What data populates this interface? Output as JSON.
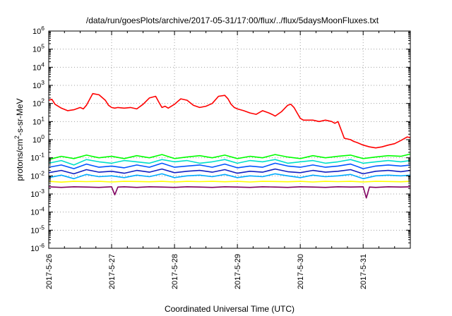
{
  "chart_data": {
    "type": "line",
    "title": "/data/run/goesPlots/archive/2017-05-31/17:00/flux/../flux/5daysMoonFluxes.txt",
    "xlabel": "Coordinated Universal Time (UTC)",
    "ylabel_parts": [
      "protons/cm",
      "2",
      "-s-sr-MeV"
    ],
    "x_tick_labels": [
      "2017-5-26",
      "2017-5-27",
      "2017-5-28",
      "2017-5-29",
      "2017-5-30",
      "2017-5-31"
    ],
    "xlim_days": [
      0,
      5.75
    ],
    "y_scale": "log",
    "ylim": [
      1e-06,
      1000000.0
    ],
    "y_tick_exponents": [
      -6,
      -5,
      -4,
      -3,
      -2,
      -1,
      0,
      1,
      2,
      3,
      4,
      5,
      6
    ],
    "grid": true,
    "series": [
      {
        "color": "#ff0000",
        "x": [
          0.0,
          0.05,
          0.1,
          0.2,
          0.3,
          0.4,
          0.5,
          0.55,
          0.6,
          0.7,
          0.8,
          0.9,
          0.95,
          1.0,
          1.05,
          1.1,
          1.2,
          1.3,
          1.4,
          1.5,
          1.6,
          1.7,
          1.75,
          1.8,
          1.85,
          1.9,
          2.0,
          2.1,
          2.2,
          2.3,
          2.4,
          2.5,
          2.6,
          2.7,
          2.8,
          2.85,
          2.9,
          2.95,
          3.0,
          3.1,
          3.2,
          3.3,
          3.4,
          3.5,
          3.55,
          3.6,
          3.7,
          3.8,
          3.85,
          3.9,
          3.95,
          4.0,
          4.05,
          4.1,
          4.2,
          4.3,
          4.4,
          4.5,
          4.55,
          4.6,
          4.7,
          4.8,
          4.85,
          4.9,
          5.0,
          5.1,
          5.2,
          5.3,
          5.4,
          5.5,
          5.6,
          5.7,
          5.75
        ],
        "values": [
          150,
          170,
          90,
          55,
          40,
          45,
          60,
          50,
          80,
          350,
          300,
          150,
          80,
          60,
          55,
          60,
          55,
          60,
          50,
          90,
          200,
          250,
          120,
          60,
          70,
          55,
          90,
          180,
          150,
          80,
          60,
          70,
          100,
          250,
          280,
          180,
          90,
          60,
          50,
          40,
          30,
          25,
          40,
          30,
          25,
          20,
          35,
          80,
          90,
          60,
          30,
          15,
          12,
          12,
          12,
          10,
          12,
          10,
          8,
          10,
          1.2,
          1.0,
          0.8,
          0.7,
          0.5,
          0.4,
          0.35,
          0.4,
          0.5,
          0.6,
          0.9,
          1.4,
          1.3
        ]
      },
      {
        "color": "#00ff00",
        "x": [
          0.0,
          0.2,
          0.4,
          0.6,
          0.8,
          1.0,
          1.2,
          1.4,
          1.6,
          1.8,
          2.0,
          2.2,
          2.4,
          2.6,
          2.8,
          3.0,
          3.2,
          3.4,
          3.6,
          3.8,
          4.0,
          4.2,
          4.4,
          4.6,
          4.8,
          5.0,
          5.2,
          5.4,
          5.6,
          5.75
        ],
        "values": [
          0.08,
          0.12,
          0.09,
          0.14,
          0.1,
          0.12,
          0.09,
          0.13,
          0.1,
          0.15,
          0.09,
          0.11,
          0.13,
          0.1,
          0.14,
          0.09,
          0.12,
          0.1,
          0.15,
          0.11,
          0.09,
          0.13,
          0.1,
          0.12,
          0.14,
          0.09,
          0.11,
          0.13,
          0.12,
          0.16
        ]
      },
      {
        "color": "#00e0c8",
        "x": [
          0.0,
          0.2,
          0.4,
          0.6,
          0.8,
          1.0,
          1.2,
          1.4,
          1.6,
          1.8,
          2.0,
          2.2,
          2.4,
          2.6,
          2.8,
          3.0,
          3.2,
          3.4,
          3.6,
          3.8,
          4.0,
          4.2,
          4.4,
          4.6,
          4.8,
          5.0,
          5.2,
          5.4,
          5.6,
          5.75
        ],
        "values": [
          0.05,
          0.07,
          0.04,
          0.08,
          0.06,
          0.05,
          0.07,
          0.06,
          0.05,
          0.08,
          0.06,
          0.07,
          0.05,
          0.06,
          0.08,
          0.05,
          0.07,
          0.06,
          0.08,
          0.05,
          0.06,
          0.07,
          0.05,
          0.06,
          0.08,
          0.05,
          0.06,
          0.07,
          0.06,
          0.07
        ]
      },
      {
        "color": "#0055ff",
        "x": [
          0.0,
          0.2,
          0.4,
          0.6,
          0.8,
          1.0,
          1.2,
          1.4,
          1.6,
          1.8,
          2.0,
          2.2,
          2.4,
          2.6,
          2.8,
          3.0,
          3.2,
          3.4,
          3.6,
          3.8,
          4.0,
          4.2,
          4.4,
          4.6,
          4.8,
          5.0,
          5.2,
          5.4,
          5.6,
          5.75
        ],
        "values": [
          0.03,
          0.04,
          0.025,
          0.045,
          0.03,
          0.035,
          0.028,
          0.04,
          0.03,
          0.05,
          0.03,
          0.035,
          0.04,
          0.03,
          0.045,
          0.028,
          0.035,
          0.03,
          0.05,
          0.035,
          0.03,
          0.04,
          0.03,
          0.035,
          0.045,
          0.025,
          0.035,
          0.04,
          0.035,
          0.04
        ]
      },
      {
        "color": "#1020c0",
        "x": [
          0.0,
          0.2,
          0.4,
          0.6,
          0.8,
          1.0,
          1.2,
          1.4,
          1.6,
          1.8,
          2.0,
          2.2,
          2.4,
          2.6,
          2.8,
          3.0,
          3.2,
          3.4,
          3.6,
          3.8,
          4.0,
          4.2,
          4.4,
          4.6,
          4.8,
          5.0,
          5.2,
          5.4,
          5.6,
          5.75
        ],
        "values": [
          0.015,
          0.02,
          0.013,
          0.022,
          0.016,
          0.018,
          0.014,
          0.02,
          0.016,
          0.024,
          0.015,
          0.018,
          0.02,
          0.016,
          0.022,
          0.014,
          0.018,
          0.016,
          0.024,
          0.017,
          0.015,
          0.02,
          0.016,
          0.018,
          0.022,
          0.013,
          0.018,
          0.02,
          0.017,
          0.02
        ]
      },
      {
        "color": "#00aaff",
        "x": [
          0.0,
          0.2,
          0.4,
          0.6,
          0.8,
          1.0,
          1.2,
          1.4,
          1.6,
          1.8,
          2.0,
          2.2,
          2.4,
          2.6,
          2.8,
          3.0,
          3.2,
          3.4,
          3.6,
          3.8,
          4.0,
          4.2,
          4.4,
          4.6,
          4.8,
          5.0,
          5.2,
          5.4,
          5.6,
          5.75
        ],
        "values": [
          0.008,
          0.011,
          0.007,
          0.012,
          0.009,
          0.01,
          0.008,
          0.011,
          0.009,
          0.013,
          0.008,
          0.01,
          0.011,
          0.009,
          0.012,
          0.008,
          0.01,
          0.009,
          0.013,
          0.01,
          0.008,
          0.011,
          0.009,
          0.01,
          0.012,
          0.007,
          0.01,
          0.011,
          0.01,
          0.011
        ]
      },
      {
        "color": "#ffff00",
        "x": [
          0.0,
          0.2,
          0.4,
          0.6,
          0.8,
          1.0,
          1.2,
          1.4,
          1.6,
          1.8,
          2.0,
          2.2,
          2.4,
          2.6,
          2.8,
          3.0,
          3.2,
          3.4,
          3.6,
          3.8,
          4.0,
          4.2,
          4.4,
          4.6,
          4.8,
          5.0,
          5.2,
          5.4,
          5.6,
          5.75
        ],
        "values": [
          0.005,
          0.0045,
          0.005,
          0.0048,
          0.005,
          0.0046,
          0.005,
          0.0049,
          0.0047,
          0.005,
          0.0046,
          0.005,
          0.0048,
          0.005,
          0.0047,
          0.005,
          0.0046,
          0.005,
          0.0049,
          0.0047,
          0.005,
          0.0046,
          0.005,
          0.0048,
          0.005,
          0.0046,
          0.005,
          0.0049,
          0.0047,
          0.005
        ]
      },
      {
        "color": "#800060",
        "x": [
          0.0,
          0.2,
          0.4,
          0.6,
          0.8,
          1.0,
          1.05,
          1.1,
          1.2,
          1.4,
          1.6,
          1.8,
          2.0,
          2.2,
          2.4,
          2.6,
          2.8,
          3.0,
          3.2,
          3.4,
          3.6,
          3.8,
          4.0,
          4.2,
          4.4,
          4.6,
          4.8,
          5.0,
          5.05,
          5.1,
          5.2,
          5.4,
          5.6,
          5.75
        ],
        "values": [
          0.0025,
          0.0023,
          0.0025,
          0.0024,
          0.0023,
          0.0025,
          0.0009,
          0.0024,
          0.0025,
          0.0023,
          0.0025,
          0.0024,
          0.0023,
          0.0025,
          0.0024,
          0.0023,
          0.0025,
          0.0024,
          0.0023,
          0.0025,
          0.0024,
          0.0023,
          0.0025,
          0.0024,
          0.0023,
          0.0025,
          0.0024,
          0.0025,
          0.0006,
          0.0024,
          0.0023,
          0.0025,
          0.0024,
          0.0025
        ]
      }
    ]
  }
}
